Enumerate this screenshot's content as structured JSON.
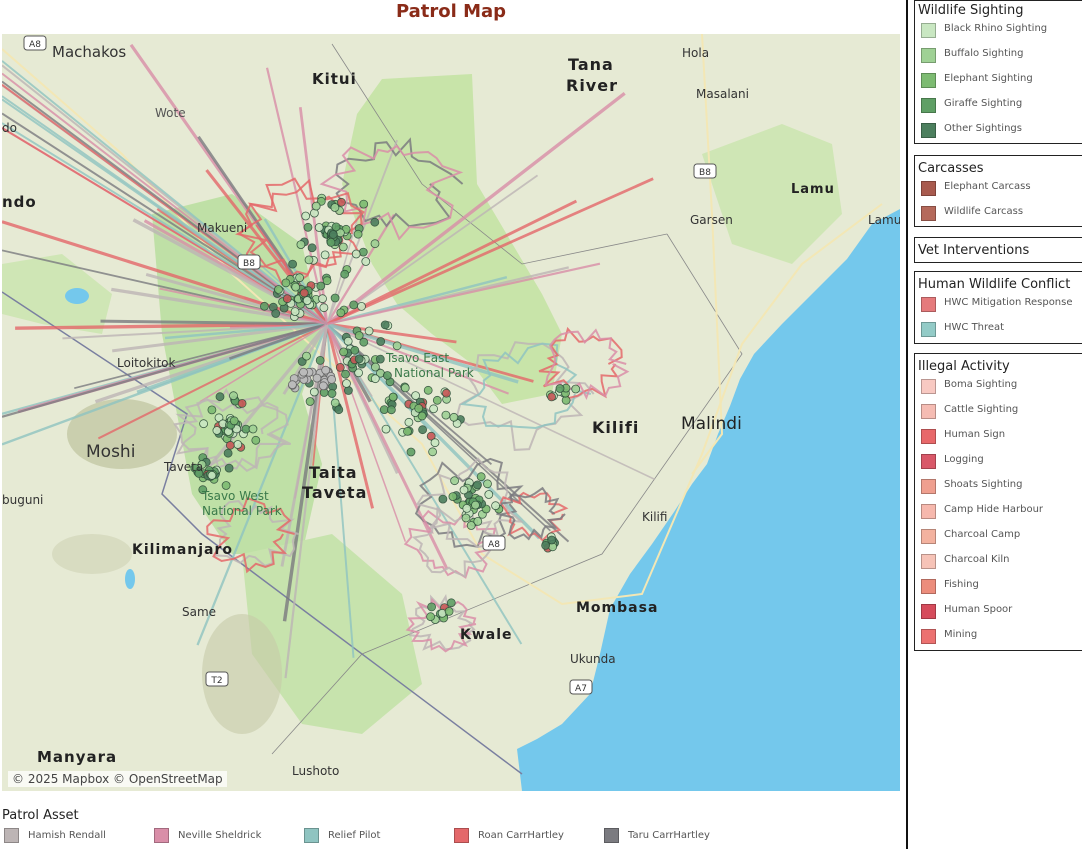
{
  "title": "Patrol Map",
  "map": {
    "attribution": "© 2025 Mapbox © OpenStreetMap",
    "places": [
      {
        "name": "Machakos",
        "bold": false
      },
      {
        "name": "Kitui",
        "bold": true
      },
      {
        "name": "Tana",
        "bold": true
      },
      {
        "name": "River",
        "bold": true
      },
      {
        "name": "Hola",
        "bold": false
      },
      {
        "name": "Masalani",
        "bold": false
      },
      {
        "name": "Wote",
        "bold": false
      },
      {
        "name": "do",
        "bold": false
      },
      {
        "name": "ndo",
        "bold": true
      },
      {
        "name": "Makueni",
        "bold": false
      },
      {
        "name": "Lamu",
        "bold": true
      },
      {
        "name": "Lamu",
        "bold": false
      },
      {
        "name": "Garsen",
        "bold": false
      },
      {
        "name": "Loitokitok",
        "bold": false
      },
      {
        "name": "Tsavo East",
        "bold": false
      },
      {
        "name": "National Park",
        "bold": false
      },
      {
        "name": "Kilifi",
        "bold": true
      },
      {
        "name": "Malindi",
        "bold": false
      },
      {
        "name": "Moshi",
        "bold": false
      },
      {
        "name": "Taveta",
        "bold": false
      },
      {
        "name": "Taita",
        "bold": true
      },
      {
        "name": "Taveta",
        "bold": true
      },
      {
        "name": "buguni",
        "bold": false
      },
      {
        "name": "Tsavo West",
        "bold": false
      },
      {
        "name": "National Park",
        "bold": false
      },
      {
        "name": "Kilifi",
        "bold": false
      },
      {
        "name": "Kilimanjaro",
        "bold": true
      },
      {
        "name": "Mombasa",
        "bold": true
      },
      {
        "name": "Kwale",
        "bold": true
      },
      {
        "name": "Same",
        "bold": false
      },
      {
        "name": "Ukunda",
        "bold": false
      },
      {
        "name": "Manyara",
        "bold": true
      },
      {
        "name": "Lushoto",
        "bold": false
      }
    ],
    "road_shields": [
      "A8",
      "B8",
      "A8",
      "A7",
      "T2",
      "B8"
    ]
  },
  "legends": {
    "wildlife": {
      "title": "Wildlife Sighting",
      "items": [
        {
          "label": "Black Rhino Sighting",
          "color": "#c9e7c2"
        },
        {
          "label": "Buffalo Sighting",
          "color": "#9fd195"
        },
        {
          "label": "Elephant Sighting",
          "color": "#7dbb72"
        },
        {
          "label": "Giraffe Sighting",
          "color": "#5f9f65"
        },
        {
          "label": "Other Sightings",
          "color": "#4c7f5e"
        }
      ]
    },
    "carcasses": {
      "title": "Carcasses",
      "items": [
        {
          "label": "Elephant Carcass",
          "color": "#a85a4e"
        },
        {
          "label": "Wildlife Carcass",
          "color": "#b5695b"
        }
      ]
    },
    "vet": {
      "title": "Vet Interventions",
      "items": []
    },
    "hwc": {
      "title": "Human Wildlife Conflict",
      "items": [
        {
          "label": "HWC Mitigation Response",
          "color": "#e57a7c"
        },
        {
          "label": "HWC Threat",
          "color": "#93cbc7"
        }
      ]
    },
    "illegal": {
      "title": "Illegal Activity",
      "items": [
        {
          "label": "Boma Sighting",
          "color": "#f8c9c2"
        },
        {
          "label": "Cattle Sighting",
          "color": "#f5bcb3"
        },
        {
          "label": "Human Sign",
          "color": "#e8686a"
        },
        {
          "label": "Logging",
          "color": "#d95869"
        },
        {
          "label": "Shoats Sighting",
          "color": "#ef9f8f"
        },
        {
          "label": "Camp Hide Harbour",
          "color": "#f6b8ad"
        },
        {
          "label": "Charcoal Camp",
          "color": "#f3b29f"
        },
        {
          "label": "Charcoal Kiln",
          "color": "#f6c3b7"
        },
        {
          "label": "Fishing",
          "color": "#ec8d7c"
        },
        {
          "label": "Human Spoor",
          "color": "#d64c5c"
        },
        {
          "label": "Mining",
          "color": "#ec7170"
        }
      ]
    }
  },
  "patrol_asset": {
    "title": "Patrol Asset",
    "items": [
      {
        "label": "Hamish Rendall",
        "color": "#bdb5b5"
      },
      {
        "label": "Neville Sheldrick",
        "color": "#d98ea8"
      },
      {
        "label": "Relief Pilot",
        "color": "#8fc4c1"
      },
      {
        "label": "Roan CarrHartley",
        "color": "#e4686a"
      },
      {
        "label": "Taru CarrHartley",
        "color": "#7b7b80"
      }
    ]
  }
}
